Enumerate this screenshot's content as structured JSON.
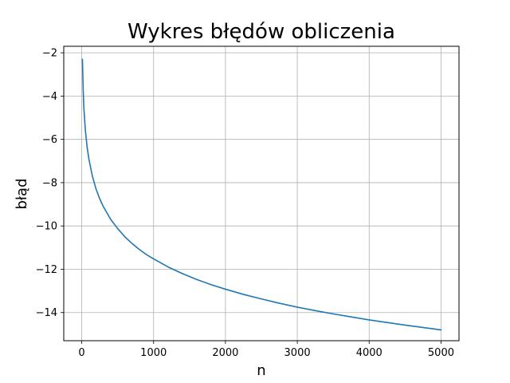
{
  "chart_data": {
    "type": "line",
    "title": "Wykres błędów obliczenia",
    "xlabel": "n",
    "ylabel": "błąd",
    "xlim": [
      -250,
      5250
    ],
    "ylim": [
      -15.3,
      -1.7
    ],
    "xticks": [
      0,
      1000,
      2000,
      3000,
      4000,
      5000
    ],
    "xtick_labels": [
      "0",
      "1000",
      "2000",
      "3000",
      "4000",
      "5000"
    ],
    "yticks": [
      -14,
      -12,
      -10,
      -8,
      -6,
      -4,
      -2
    ],
    "ytick_labels": [
      "−14",
      "−12",
      "−10",
      "−8",
      "−6",
      "−4",
      "−2"
    ],
    "grid": true,
    "colors": {
      "line": "#1f77b4",
      "grid": "#b0b0b0",
      "axes": "#000000"
    },
    "series": [
      {
        "x": [
          10,
          20,
          30,
          50,
          75,
          100,
          150,
          200,
          250,
          300,
          400,
          500,
          600,
          700,
          800,
          900,
          1000,
          1200,
          1400,
          1600,
          1800,
          2000,
          2250,
          2500,
          2750,
          3000,
          3250,
          3500,
          3750,
          4000,
          4250,
          4500,
          4750,
          5000
        ],
        "y": [
          -2.3,
          -3.67,
          -4.55,
          -5.55,
          -6.35,
          -6.91,
          -7.72,
          -8.3,
          -8.74,
          -9.1,
          -9.68,
          -10.12,
          -10.5,
          -10.81,
          -11.08,
          -11.32,
          -11.52,
          -11.89,
          -12.2,
          -12.47,
          -12.71,
          -12.92,
          -13.16,
          -13.37,
          -13.57,
          -13.75,
          -13.91,
          -14.06,
          -14.2,
          -14.34,
          -14.46,
          -14.58,
          -14.69,
          -14.8
        ]
      }
    ]
  }
}
